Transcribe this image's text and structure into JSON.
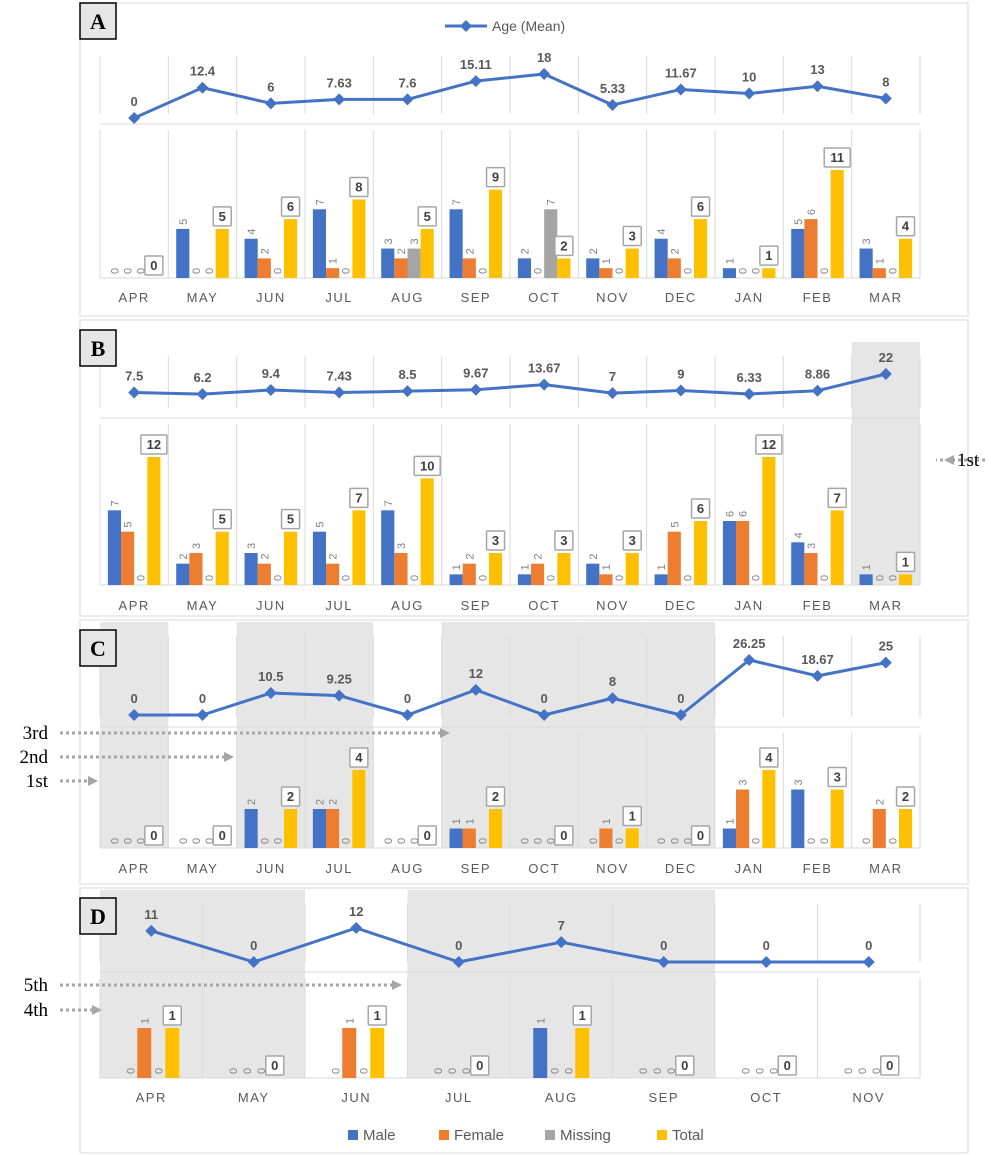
{
  "colors": {
    "male": "#4472C4",
    "female": "#ED7D31",
    "missing": "#A5A5A5",
    "total": "#FFC000",
    "line": "#4472C4",
    "shade": "#e6e6e6",
    "text": "#595959"
  },
  "top_legend": {
    "series_label": "Age (Mean)"
  },
  "bottom_legend": {
    "male": "Male",
    "female": "Female",
    "missing": "Missing",
    "total": "Total"
  },
  "annotations": [
    "1st",
    "2nd",
    "3rd",
    "4th",
    "5th"
  ],
  "chart_data": [
    {
      "panel": "A",
      "type": "bar",
      "categories": [
        "APR",
        "MAY",
        "JUN",
        "JUL",
        "AUG",
        "SEP",
        "OCT",
        "NOV",
        "DEC",
        "JAN",
        "FEB",
        "MAR"
      ],
      "age_mean": [
        0,
        12.4,
        6,
        7.63,
        7.6,
        15.11,
        18,
        5.33,
        11.67,
        10,
        13,
        8
      ],
      "age_labels": [
        "0",
        "12.4",
        "6",
        "7.63",
        "7.6",
        "15.11",
        "18",
        "5.33",
        "11.67",
        "10",
        "13",
        "8"
      ],
      "series": [
        {
          "name": "Male",
          "values": [
            0,
            5,
            4,
            7,
            3,
            7,
            2,
            2,
            4,
            1,
            5,
            3
          ]
        },
        {
          "name": "Female",
          "values": [
            0,
            0,
            2,
            1,
            2,
            2,
            0,
            1,
            2,
            0,
            6,
            1
          ]
        },
        {
          "name": "Missing",
          "values": [
            0,
            0,
            0,
            0,
            3,
            0,
            7,
            0,
            0,
            0,
            0,
            0
          ]
        },
        {
          "name": "Total",
          "values": [
            0,
            5,
            6,
            8,
            5,
            9,
            2,
            3,
            6,
            1,
            11,
            4
          ]
        }
      ],
      "ylim": [
        0,
        11
      ],
      "shaded": []
    },
    {
      "panel": "B",
      "type": "bar",
      "categories": [
        "APR",
        "MAY",
        "JUN",
        "JUL",
        "AUG",
        "SEP",
        "OCT",
        "NOV",
        "DEC",
        "JAN",
        "FEB",
        "MAR"
      ],
      "age_mean": [
        7.5,
        6.2,
        9.4,
        7.43,
        8.5,
        9.67,
        13.67,
        7,
        9,
        6.33,
        8.86,
        22
      ],
      "age_labels": [
        "7.5",
        "6.2",
        "9.4",
        "7.43",
        "8.5",
        "9.67",
        "13.67",
        "7",
        "9",
        "6.33",
        "8.86",
        "22"
      ],
      "series": [
        {
          "name": "Male",
          "values": [
            7,
            2,
            3,
            5,
            7,
            1,
            1,
            2,
            1,
            6,
            4,
            1
          ]
        },
        {
          "name": "Female",
          "values": [
            5,
            3,
            2,
            2,
            3,
            2,
            2,
            1,
            5,
            6,
            3,
            0
          ]
        },
        {
          "name": "Missing",
          "values": [
            0,
            0,
            0,
            0,
            0,
            0,
            0,
            0,
            0,
            0,
            0,
            0
          ]
        },
        {
          "name": "Total",
          "values": [
            12,
            5,
            5,
            7,
            10,
            3,
            3,
            3,
            6,
            12,
            7,
            1
          ]
        }
      ],
      "ylim": [
        0,
        12
      ],
      "shaded": [
        11
      ]
    },
    {
      "panel": "C",
      "type": "bar",
      "categories": [
        "APR",
        "MAY",
        "JUN",
        "JUL",
        "AUG",
        "SEP",
        "OCT",
        "NOV",
        "DEC",
        "JAN",
        "FEB",
        "MAR"
      ],
      "age_mean": [
        0,
        0,
        10.5,
        9.25,
        0,
        12,
        0,
        8,
        0,
        26.25,
        18.67,
        25
      ],
      "age_labels": [
        "0",
        "0",
        "10.5",
        "9.25",
        "0",
        "12",
        "0",
        "8",
        "0",
        "26.25",
        "18.67",
        "25"
      ],
      "series": [
        {
          "name": "Male",
          "values": [
            0,
            0,
            2,
            2,
            0,
            1,
            0,
            0,
            0,
            1,
            3,
            0
          ]
        },
        {
          "name": "Female",
          "values": [
            0,
            0,
            0,
            2,
            0,
            1,
            0,
            1,
            0,
            3,
            0,
            2
          ]
        },
        {
          "name": "Missing",
          "values": [
            0,
            0,
            0,
            0,
            0,
            0,
            0,
            0,
            0,
            0,
            0,
            0
          ]
        },
        {
          "name": "Total",
          "values": [
            0,
            0,
            2,
            4,
            0,
            2,
            0,
            1,
            0,
            4,
            3,
            2
          ]
        }
      ],
      "ylim": [
        0,
        4
      ],
      "shaded": [
        0,
        2,
        3,
        5,
        6,
        7,
        8
      ]
    },
    {
      "panel": "D",
      "type": "bar",
      "categories": [
        "APR",
        "MAY",
        "JUN",
        "JUL",
        "AUG",
        "SEP",
        "OCT",
        "NOV"
      ],
      "age_mean": [
        11,
        0,
        12,
        0,
        7,
        0,
        0,
        0
      ],
      "age_labels": [
        "11",
        "0",
        "12",
        "0",
        "7",
        "0",
        "0",
        "0"
      ],
      "series": [
        {
          "name": "Male",
          "values": [
            0,
            0,
            0,
            0,
            1,
            0,
            0,
            0
          ]
        },
        {
          "name": "Female",
          "values": [
            1,
            0,
            1,
            0,
            0,
            0,
            0,
            0
          ]
        },
        {
          "name": "Missing",
          "values": [
            0,
            0,
            0,
            0,
            0,
            0,
            0,
            0
          ]
        },
        {
          "name": "Total",
          "values": [
            1,
            0,
            1,
            0,
            1,
            0,
            0,
            0
          ]
        }
      ],
      "ylim": [
        0,
        1
      ],
      "shaded": [
        0,
        1,
        3,
        4,
        5
      ]
    }
  ]
}
